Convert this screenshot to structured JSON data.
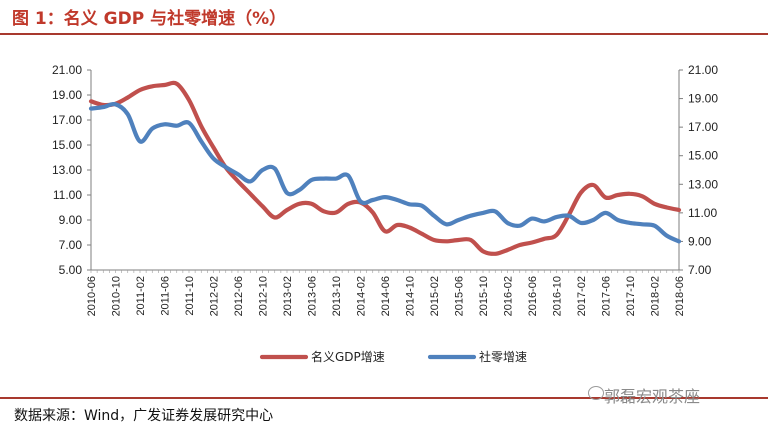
{
  "header": {
    "title": "图 1：名义 GDP 与社零增速（%）"
  },
  "footer": {
    "source": "数据来源：Wind，广发证券发展研究中心",
    "watermark": "郭磊宏观茶座"
  },
  "colors": {
    "gdp": "#c0504d",
    "retail": "#4f81bd",
    "accent": "#a8392e"
  },
  "chart_data": {
    "type": "line",
    "title": "名义 GDP 与社零增速（%）",
    "x_tick_labels": [
      "2010-06",
      "2010-10",
      "2011-02",
      "2011-06",
      "2011-10",
      "2012-02",
      "2012-06",
      "2012-10",
      "2013-02",
      "2013-06",
      "2013-10",
      "2014-02",
      "2014-06",
      "2014-10",
      "2015-02",
      "2015-06",
      "2015-10",
      "2016-02",
      "2016-06",
      "2016-10",
      "2017-02",
      "2017-06",
      "2017-10",
      "2018-02",
      "2018-06"
    ],
    "left_axis": {
      "min": 5,
      "max": 21,
      "step": 2,
      "ticks": [
        "5.00",
        "7.00",
        "9.00",
        "11.00",
        "13.00",
        "15.00",
        "17.00",
        "19.00",
        "21.00"
      ]
    },
    "right_axis": {
      "min": 7,
      "max": 21,
      "step": 2,
      "ticks": [
        "7.00",
        "9.00",
        "11.00",
        "13.00",
        "15.00",
        "17.00",
        "19.00",
        "21.00"
      ]
    },
    "series": [
      {
        "name": "名义GDP增速",
        "axis": "left",
        "color": "#c0504d",
        "points": [
          [
            "2010-06",
            18.5
          ],
          [
            "2010-08",
            18.2
          ],
          [
            "2010-10",
            18.3
          ],
          [
            "2010-12",
            18.8
          ],
          [
            "2011-02",
            19.4
          ],
          [
            "2011-04",
            19.7
          ],
          [
            "2011-06",
            19.8
          ],
          [
            "2011-08",
            19.9
          ],
          [
            "2011-10",
            18.6
          ],
          [
            "2011-12",
            16.5
          ],
          [
            "2012-02",
            14.8
          ],
          [
            "2012-04",
            13.2
          ],
          [
            "2012-06",
            12.1
          ],
          [
            "2012-08",
            11.1
          ],
          [
            "2012-10",
            10.1
          ],
          [
            "2012-12",
            9.2
          ],
          [
            "2013-02",
            9.8
          ],
          [
            "2013-04",
            10.3
          ],
          [
            "2013-06",
            10.3
          ],
          [
            "2013-08",
            9.7
          ],
          [
            "2013-10",
            9.6
          ],
          [
            "2013-12",
            10.3
          ],
          [
            "2014-02",
            10.4
          ],
          [
            "2014-04",
            9.6
          ],
          [
            "2014-06",
            8.1
          ],
          [
            "2014-08",
            8.6
          ],
          [
            "2014-10",
            8.4
          ],
          [
            "2014-12",
            7.9
          ],
          [
            "2015-02",
            7.4
          ],
          [
            "2015-04",
            7.3
          ],
          [
            "2015-06",
            7.4
          ],
          [
            "2015-08",
            7.4
          ],
          [
            "2015-10",
            6.5
          ],
          [
            "2015-12",
            6.3
          ],
          [
            "2016-02",
            6.6
          ],
          [
            "2016-04",
            7.0
          ],
          [
            "2016-06",
            7.2
          ],
          [
            "2016-08",
            7.5
          ],
          [
            "2016-10",
            7.8
          ],
          [
            "2016-12",
            9.4
          ],
          [
            "2017-02",
            11.2
          ],
          [
            "2017-04",
            11.8
          ],
          [
            "2017-06",
            10.8
          ],
          [
            "2017-08",
            11.0
          ],
          [
            "2017-10",
            11.1
          ],
          [
            "2017-12",
            10.9
          ],
          [
            "2018-02",
            10.3
          ],
          [
            "2018-04",
            10.0
          ],
          [
            "2018-06",
            9.8
          ]
        ]
      },
      {
        "name": "社零增速",
        "axis": "right",
        "color": "#4f81bd",
        "points": [
          [
            "2010-06",
            18.3
          ],
          [
            "2010-08",
            18.4
          ],
          [
            "2010-10",
            18.6
          ],
          [
            "2010-12",
            17.9
          ],
          [
            "2011-02",
            16.0
          ],
          [
            "2011-04",
            16.9
          ],
          [
            "2011-06",
            17.2
          ],
          [
            "2011-08",
            17.1
          ],
          [
            "2011-10",
            17.3
          ],
          [
            "2011-12",
            16.0
          ],
          [
            "2012-02",
            14.8
          ],
          [
            "2012-04",
            14.2
          ],
          [
            "2012-06",
            13.7
          ],
          [
            "2012-08",
            13.2
          ],
          [
            "2012-10",
            14.0
          ],
          [
            "2012-12",
            14.1
          ],
          [
            "2013-02",
            12.4
          ],
          [
            "2013-04",
            12.6
          ],
          [
            "2013-06",
            13.3
          ],
          [
            "2013-08",
            13.4
          ],
          [
            "2013-10",
            13.4
          ],
          [
            "2013-12",
            13.6
          ],
          [
            "2014-02",
            11.8
          ],
          [
            "2014-04",
            11.9
          ],
          [
            "2014-06",
            12.1
          ],
          [
            "2014-08",
            11.9
          ],
          [
            "2014-10",
            11.6
          ],
          [
            "2014-12",
            11.5
          ],
          [
            "2015-02",
            10.8
          ],
          [
            "2015-04",
            10.2
          ],
          [
            "2015-06",
            10.5
          ],
          [
            "2015-08",
            10.8
          ],
          [
            "2015-10",
            11.0
          ],
          [
            "2015-12",
            11.1
          ],
          [
            "2016-02",
            10.3
          ],
          [
            "2016-04",
            10.1
          ],
          [
            "2016-06",
            10.6
          ],
          [
            "2016-08",
            10.4
          ],
          [
            "2016-10",
            10.7
          ],
          [
            "2016-12",
            10.8
          ],
          [
            "2017-02",
            10.3
          ],
          [
            "2017-04",
            10.5
          ],
          [
            "2017-06",
            11.0
          ],
          [
            "2017-08",
            10.5
          ],
          [
            "2017-10",
            10.3
          ],
          [
            "2017-12",
            10.2
          ],
          [
            "2018-02",
            10.1
          ],
          [
            "2018-04",
            9.4
          ],
          [
            "2018-06",
            9.0
          ]
        ]
      }
    ],
    "legend": {
      "position": "bottom-center",
      "entries": [
        "名义GDP增速",
        "社零增速"
      ]
    },
    "grid": false
  }
}
